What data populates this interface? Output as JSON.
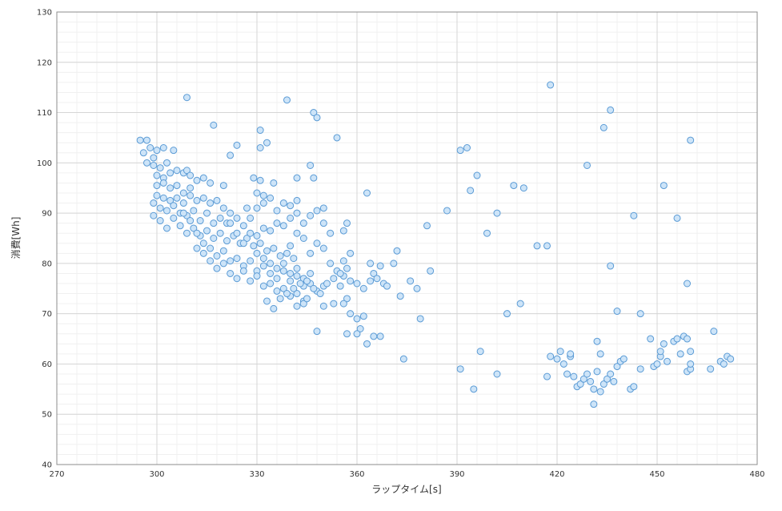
{
  "chart_data": {
    "type": "scatter",
    "xlabel": "ラップタイム[s]",
    "ylabel": "消費[Wh]",
    "xlim": [
      270,
      480
    ],
    "ylim": [
      40,
      130
    ],
    "x_ticks": [
      270,
      300,
      330,
      360,
      390,
      420,
      450,
      480
    ],
    "y_ticks": [
      40,
      50,
      60,
      70,
      80,
      90,
      100,
      110,
      120,
      130
    ],
    "grid": true,
    "legend": "none",
    "marker_fill": "#cde4f8",
    "marker_edge": "#5b9bd5",
    "points": [
      [
        295,
        104.5
      ],
      [
        297,
        104.5
      ],
      [
        296,
        102
      ],
      [
        298,
        103
      ],
      [
        299,
        101
      ],
      [
        300,
        102.5
      ],
      [
        302,
        103
      ],
      [
        305,
        102.5
      ],
      [
        297,
        100
      ],
      [
        299,
        99.5
      ],
      [
        301,
        99
      ],
      [
        303,
        100
      ],
      [
        300,
        97.5
      ],
      [
        302,
        97
      ],
      [
        304,
        98
      ],
      [
        306,
        98.5
      ],
      [
        308,
        98
      ],
      [
        309,
        98.5
      ],
      [
        310,
        97.5
      ],
      [
        300,
        95.5
      ],
      [
        302,
        96
      ],
      [
        304,
        95
      ],
      [
        306,
        95.5
      ],
      [
        308,
        94
      ],
      [
        310,
        95
      ],
      [
        312,
        96.5
      ],
      [
        314,
        97
      ],
      [
        300,
        93.5
      ],
      [
        302,
        93
      ],
      [
        304,
        92.5
      ],
      [
        306,
        93
      ],
      [
        308,
        92
      ],
      [
        310,
        93.5
      ],
      [
        312,
        92.5
      ],
      [
        314,
        93
      ],
      [
        316,
        92
      ],
      [
        318,
        92.5
      ],
      [
        320,
        91
      ],
      [
        322,
        90
      ],
      [
        324,
        89
      ],
      [
        299,
        92
      ],
      [
        301,
        91
      ],
      [
        303,
        90.5
      ],
      [
        305,
        91.5
      ],
      [
        307,
        90
      ],
      [
        309,
        89.5
      ],
      [
        311,
        90.5
      ],
      [
        313,
        88.5
      ],
      [
        315,
        90
      ],
      [
        317,
        88
      ],
      [
        319,
        89
      ],
      [
        321,
        88
      ],
      [
        299,
        89.5
      ],
      [
        301,
        88.5
      ],
      [
        303,
        87
      ],
      [
        305,
        89
      ],
      [
        307,
        87.5
      ],
      [
        309,
        86
      ],
      [
        311,
        87
      ],
      [
        313,
        85.5
      ],
      [
        315,
        86.5
      ],
      [
        317,
        85
      ],
      [
        319,
        86
      ],
      [
        321,
        84.5
      ],
      [
        323,
        85.5
      ],
      [
        325,
        84
      ],
      [
        327,
        85
      ],
      [
        329,
        83.5
      ],
      [
        331,
        84
      ],
      [
        333,
        82.5
      ],
      [
        335,
        83
      ],
      [
        337,
        81.5
      ],
      [
        339,
        82
      ],
      [
        341,
        81
      ],
      [
        308,
        90
      ],
      [
        310,
        88.5
      ],
      [
        312,
        86
      ],
      [
        314,
        84
      ],
      [
        316,
        83
      ],
      [
        318,
        81.5
      ],
      [
        320,
        82.5
      ],
      [
        322,
        80.5
      ],
      [
        324,
        81
      ],
      [
        326,
        79.5
      ],
      [
        328,
        80.5
      ],
      [
        330,
        78.5
      ],
      [
        332,
        79.5
      ],
      [
        334,
        78
      ],
      [
        336,
        77
      ],
      [
        338,
        78.5
      ],
      [
        340,
        76.5
      ],
      [
        342,
        77.5
      ],
      [
        344,
        75.5
      ],
      [
        346,
        76
      ],
      [
        348,
        74.5
      ],
      [
        350,
        75.5
      ],
      [
        312,
        83
      ],
      [
        314,
        82
      ],
      [
        316,
        80.5
      ],
      [
        318,
        79
      ],
      [
        320,
        80
      ],
      [
        322,
        78
      ],
      [
        324,
        77
      ],
      [
        326,
        78.5
      ],
      [
        328,
        76.5
      ],
      [
        330,
        77.5
      ],
      [
        332,
        75.5
      ],
      [
        334,
        76
      ],
      [
        336,
        74.5
      ],
      [
        338,
        75
      ],
      [
        340,
        73.5
      ],
      [
        342,
        74
      ],
      [
        344,
        72.5
      ],
      [
        330,
        82
      ],
      [
        332,
        81
      ],
      [
        334,
        80
      ],
      [
        336,
        79
      ],
      [
        338,
        80
      ],
      [
        340,
        78
      ],
      [
        342,
        79
      ],
      [
        344,
        77
      ],
      [
        346,
        78
      ],
      [
        326,
        84
      ],
      [
        328,
        86
      ],
      [
        330,
        85.5
      ],
      [
        332,
        87
      ],
      [
        334,
        86.5
      ],
      [
        336,
        88
      ],
      [
        338,
        87.5
      ],
      [
        340,
        89
      ],
      [
        342,
        90
      ],
      [
        344,
        88
      ],
      [
        346,
        89.5
      ],
      [
        348,
        90.5
      ],
      [
        350,
        91
      ],
      [
        322,
        88
      ],
      [
        324,
        86
      ],
      [
        326,
        87.5
      ],
      [
        328,
        89
      ],
      [
        330,
        91
      ],
      [
        332,
        92
      ],
      [
        334,
        93
      ],
      [
        336,
        90.5
      ],
      [
        338,
        92
      ],
      [
        340,
        91.5
      ],
      [
        342,
        92.5
      ],
      [
        327,
        91
      ],
      [
        329,
        97
      ],
      [
        331,
        96.5
      ],
      [
        335,
        96
      ],
      [
        330,
        94
      ],
      [
        332,
        93.5
      ],
      [
        320,
        95.5
      ],
      [
        316,
        96
      ],
      [
        322,
        101.5
      ],
      [
        324,
        103.5
      ],
      [
        331,
        103
      ],
      [
        333,
        104
      ],
      [
        309,
        113
      ],
      [
        317,
        107.5
      ],
      [
        331,
        106.5
      ],
      [
        339,
        112.5
      ],
      [
        347,
        110
      ],
      [
        348,
        109
      ],
      [
        354,
        105
      ],
      [
        346,
        99.5
      ],
      [
        347,
        97
      ],
      [
        342,
        97
      ],
      [
        350,
        88
      ],
      [
        352,
        86
      ],
      [
        348,
        84
      ],
      [
        350,
        83
      ],
      [
        346,
        82
      ],
      [
        344,
        85
      ],
      [
        342,
        86
      ],
      [
        340,
        83.5
      ],
      [
        352,
        80
      ],
      [
        354,
        78.5
      ],
      [
        356,
        77.5
      ],
      [
        358,
        76.5
      ],
      [
        356,
        80.5
      ],
      [
        358,
        82
      ],
      [
        356,
        86.5
      ],
      [
        357,
        88
      ],
      [
        363,
        94
      ],
      [
        364,
        80
      ],
      [
        365,
        78
      ],
      [
        366,
        77
      ],
      [
        367,
        79.5
      ],
      [
        368,
        76
      ],
      [
        369,
        75.5
      ],
      [
        371,
        80
      ],
      [
        372,
        82.5
      ],
      [
        373,
        73.5
      ],
      [
        376,
        76.5
      ],
      [
        378,
        75
      ],
      [
        379,
        69
      ],
      [
        381,
        87.5
      ],
      [
        382,
        78.5
      ],
      [
        387,
        90.5
      ],
      [
        355,
        75.5
      ],
      [
        357,
        73
      ],
      [
        356,
        72
      ],
      [
        358,
        70
      ],
      [
        360,
        69
      ],
      [
        362,
        69.5
      ],
      [
        361,
        67
      ],
      [
        360,
        66
      ],
      [
        357,
        66
      ],
      [
        363,
        64
      ],
      [
        365,
        65.5
      ],
      [
        367,
        65.5
      ],
      [
        374,
        61
      ],
      [
        360,
        76
      ],
      [
        362,
        75
      ],
      [
        364,
        76.5
      ],
      [
        348,
        66.5
      ],
      [
        353,
        72
      ],
      [
        350,
        71.5
      ],
      [
        344,
        72
      ],
      [
        342,
        71.5
      ],
      [
        345,
        73
      ],
      [
        335,
        71
      ],
      [
        333,
        72.5
      ],
      [
        337,
        73
      ],
      [
        339,
        74
      ],
      [
        341,
        75
      ],
      [
        343,
        76
      ],
      [
        345,
        76.5
      ],
      [
        347,
        75
      ],
      [
        349,
        74
      ],
      [
        351,
        76
      ],
      [
        353,
        77
      ],
      [
        355,
        78
      ],
      [
        357,
        79
      ],
      [
        391,
        59
      ],
      [
        391,
        102.5
      ],
      [
        393,
        103
      ],
      [
        396,
        97.5
      ],
      [
        394,
        94.5
      ],
      [
        399,
        86
      ],
      [
        402,
        90
      ],
      [
        395,
        55
      ],
      [
        397,
        62.5
      ],
      [
        402,
        58
      ],
      [
        405,
        70
      ],
      [
        407,
        95.5
      ],
      [
        409,
        72
      ],
      [
        410,
        95
      ],
      [
        414,
        83.5
      ],
      [
        417,
        83.5
      ],
      [
        418,
        115.5
      ],
      [
        429,
        99.5
      ],
      [
        434,
        107
      ],
      [
        436,
        110.5
      ],
      [
        436,
        79.5
      ],
      [
        438,
        70.5
      ],
      [
        443,
        89.5
      ],
      [
        445,
        70
      ],
      [
        452,
        95.5
      ],
      [
        456,
        89
      ],
      [
        459,
        76
      ],
      [
        460,
        104.5
      ],
      [
        417,
        57.5
      ],
      [
        418,
        61.5
      ],
      [
        420,
        61
      ],
      [
        421,
        62.5
      ],
      [
        422,
        60
      ],
      [
        423,
        58
      ],
      [
        424,
        61.5
      ],
      [
        424,
        62
      ],
      [
        425,
        57.5
      ],
      [
        426,
        55.5
      ],
      [
        427,
        56
      ],
      [
        428,
        57
      ],
      [
        429,
        58
      ],
      [
        430,
        56.5
      ],
      [
        431,
        55
      ],
      [
        431,
        52
      ],
      [
        432,
        58.5
      ],
      [
        432,
        64.5
      ],
      [
        433,
        54.5
      ],
      [
        433,
        62
      ],
      [
        434,
        56
      ],
      [
        435,
        57
      ],
      [
        436,
        58
      ],
      [
        437,
        56.5
      ],
      [
        438,
        59.5
      ],
      [
        439,
        60.5
      ],
      [
        440,
        61
      ],
      [
        442,
        55
      ],
      [
        443,
        55.5
      ],
      [
        445,
        59
      ],
      [
        448,
        65
      ],
      [
        449,
        59.5
      ],
      [
        450,
        60
      ],
      [
        451,
        61.5
      ],
      [
        451,
        62.5
      ],
      [
        452,
        64
      ],
      [
        453,
        60.5
      ],
      [
        455,
        64.5
      ],
      [
        456,
        65
      ],
      [
        457,
        62
      ],
      [
        458,
        65.5
      ],
      [
        459,
        65
      ],
      [
        459,
        58.5
      ],
      [
        460,
        59
      ],
      [
        460,
        60
      ],
      [
        460,
        62.5
      ],
      [
        466,
        59
      ],
      [
        467,
        66.5
      ],
      [
        469,
        60.5
      ],
      [
        471,
        61.5
      ],
      [
        472,
        61
      ],
      [
        470,
        60
      ]
    ]
  }
}
